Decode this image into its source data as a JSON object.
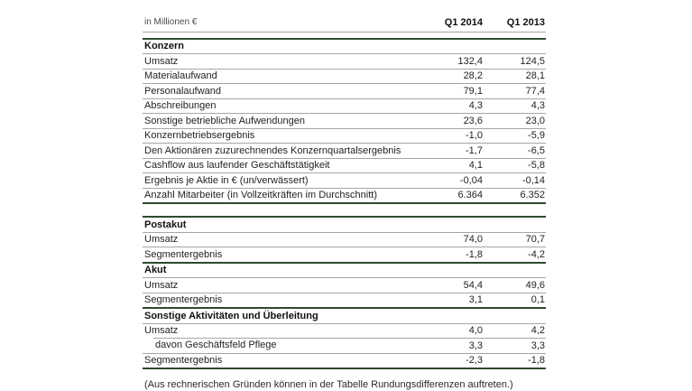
{
  "table": {
    "unit_label": "in Millionen €",
    "columns": [
      "Q1 2014",
      "Q1 2013"
    ],
    "groups": [
      {
        "sections": [
          {
            "title": "Konzern",
            "rows": [
              {
                "label": "Umsatz",
                "v1": "132,4",
                "v2": "124,5"
              },
              {
                "label": "Materialaufwand",
                "v1": "28,2",
                "v2": "28,1"
              },
              {
                "label": "Personalaufwand",
                "v1": "79,1",
                "v2": "77,4"
              },
              {
                "label": "Abschreibungen",
                "v1": "4,3",
                "v2": "4,3"
              },
              {
                "label": "Sonstige betriebliche Aufwendungen",
                "v1": "23,6",
                "v2": "23,0"
              },
              {
                "label": "Konzernbetriebsergebnis",
                "v1": "-1,0",
                "v2": "-5,9"
              },
              {
                "label": "Den Aktionären zuzurechnendes Konzernquartalsergebnis",
                "v1": "-1,7",
                "v2": "-6,5"
              },
              {
                "label": "Cashflow aus laufender Geschäftstätigkeit",
                "v1": "4,1",
                "v2": "-5,8"
              },
              {
                "label": "Ergebnis je Aktie in € (un/verwässert)",
                "v1": "-0,04",
                "v2": "-0,14"
              },
              {
                "label": "Anzahl Mitarbeiter (in Vollzeitkräften im Durchschnitt)",
                "v1": "6.364",
                "v2": "6.352"
              }
            ]
          }
        ]
      },
      {
        "sections": [
          {
            "title": "Postakut",
            "rows": [
              {
                "label": "Umsatz",
                "v1": "74,0",
                "v2": "70,7"
              },
              {
                "label": "Segmentergebnis",
                "v1": "-1,8",
                "v2": "-4,2"
              }
            ]
          },
          {
            "title": "Akut",
            "rows": [
              {
                "label": "Umsatz",
                "v1": "54,4",
                "v2": "49,6"
              },
              {
                "label": "Segmentergebnis",
                "v1": "3,1",
                "v2": "0,1"
              }
            ]
          },
          {
            "title": "Sonstige Aktivitäten und Überleitung",
            "rows": [
              {
                "label": "Umsatz",
                "v1": "4,0",
                "v2": "4,2"
              },
              {
                "label": "davon Geschäftsfeld Pflege",
                "v1": "3,3",
                "v2": "3,3",
                "indent": true
              },
              {
                "label": "Segmentergebnis",
                "v1": "-2,3",
                "v2": "-1,8"
              }
            ]
          }
        ]
      }
    ],
    "footnote": "(Aus rechnerischen Gründen können in der Tabelle Rundungsdifferenzen auftreten.)"
  },
  "colors": {
    "accent_line": "#2e4b2e",
    "divider": "#a6a6a6",
    "text": "#1f1f1f",
    "unit_label_text": "#4a4a4a",
    "background": "#ffffff"
  }
}
